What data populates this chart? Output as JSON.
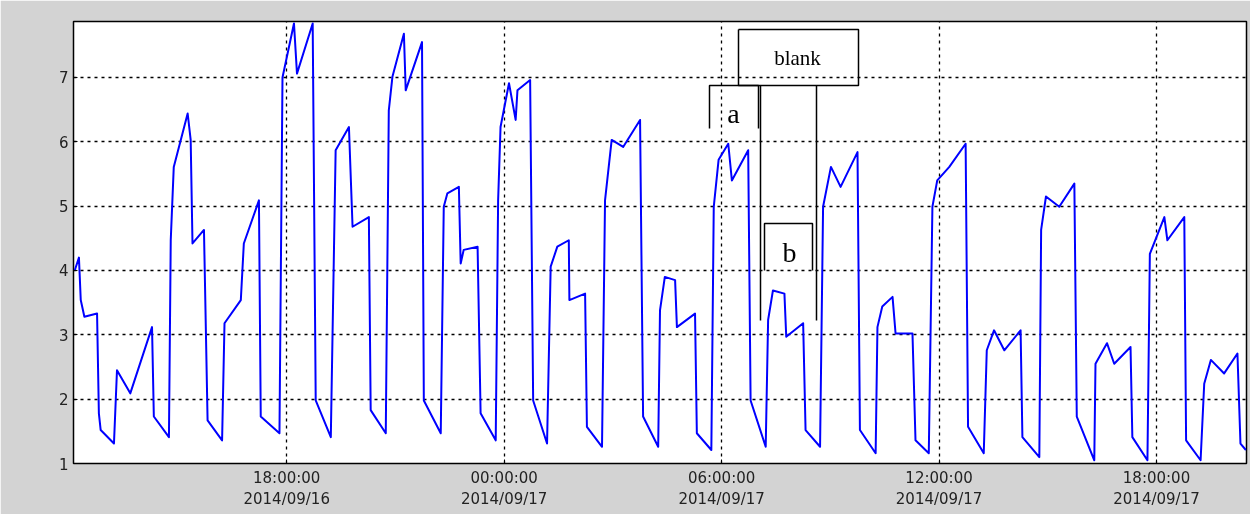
{
  "chart_data": {
    "type": "line",
    "x": [
      "2014-09-16T12:09",
      "2014-09-16T12:16",
      "2014-09-16T12:19",
      "2014-09-16T12:25",
      "2014-09-16T12:46",
      "2014-09-16T12:49",
      "2014-09-16T12:52",
      "2014-09-16T13:14",
      "2014-09-16T13:19",
      "2014-09-16T13:41",
      "2014-09-16T14:17",
      "2014-09-16T14:20",
      "2014-09-16T14:45",
      "2014-09-16T14:48",
      "2014-09-16T14:53",
      "2014-09-16T15:16",
      "2014-09-16T15:21",
      "2014-09-16T15:24",
      "2014-09-16T15:43",
      "2014-09-16T15:49",
      "2014-09-16T16:13",
      "2014-09-16T16:17",
      "2014-09-16T16:44",
      "2014-09-16T16:49",
      "2014-09-16T17:14",
      "2014-09-16T17:17",
      "2014-09-16T17:48",
      "2014-09-16T17:53",
      "2014-09-16T18:12",
      "2014-09-16T18:17",
      "2014-09-16T18:43",
      "2014-09-16T18:48",
      "2014-09-16T19:13",
      "2014-09-16T19:21",
      "2014-09-16T19:43",
      "2014-09-16T19:49",
      "2014-09-16T20:16",
      "2014-09-16T20:19",
      "2014-09-16T20:44",
      "2014-09-16T20:49",
      "2014-09-16T20:55",
      "2014-09-16T21:14",
      "2014-09-16T21:17",
      "2014-09-16T21:44",
      "2014-09-16T21:47",
      "2014-09-16T22:15",
      "2014-09-16T22:20",
      "2014-09-16T22:26",
      "2014-09-16T22:45",
      "2014-09-16T22:48",
      "2014-09-16T22:53",
      "2014-09-16T23:16",
      "2014-09-16T23:21",
      "2014-09-16T23:46",
      "2014-09-16T23:50",
      "2014-09-16T23:54",
      "2014-09-17T00:08",
      "2014-09-17T00:19",
      "2014-09-17T00:22",
      "2014-09-17T00:43",
      "2014-09-17T00:48",
      "2014-09-17T01:11",
      "2014-09-17T01:17",
      "2014-09-17T01:28",
      "2014-09-17T01:47",
      "2014-09-17T01:48",
      "2014-09-17T02:14",
      "2014-09-17T02:17",
      "2014-09-17T02:42",
      "2014-09-17T02:47",
      "2014-09-17T02:58",
      "2014-09-17T03:17",
      "2014-09-17T03:45",
      "2014-09-17T03:50",
      "2014-09-17T04:15",
      "2014-09-17T04:18",
      "2014-09-17T04:26",
      "2014-09-17T04:43",
      "2014-09-17T04:46",
      "2014-09-17T05:16",
      "2014-09-17T05:19",
      "2014-09-17T05:43",
      "2014-09-17T05:47",
      "2014-09-17T05:55",
      "2014-09-17T06:11",
      "2014-09-17T06:17",
      "2014-09-17T06:44",
      "2014-09-17T06:48",
      "2014-09-17T07:13",
      "2014-09-17T07:17",
      "2014-09-17T07:25",
      "2014-09-17T07:44",
      "2014-09-17T07:47",
      "2014-09-17T08:15",
      "2014-09-17T08:19",
      "2014-09-17T08:43",
      "2014-09-17T08:48",
      "2014-09-17T09:01",
      "2014-09-17T09:17",
      "2014-09-17T09:45",
      "2014-09-17T09:49",
      "2014-09-17T10:15",
      "2014-09-17T10:18",
      "2014-09-17T10:26",
      "2014-09-17T10:43",
      "2014-09-17T10:48",
      "2014-09-17T11:16",
      "2014-09-17T11:21",
      "2014-09-17T11:43",
      "2014-09-17T11:49",
      "2014-09-17T11:57",
      "2014-09-17T12:17",
      "2014-09-17T12:44",
      "2014-09-17T12:48",
      "2014-09-17T13:14",
      "2014-09-17T13:19",
      "2014-09-17T13:31",
      "2014-09-17T13:48",
      "2014-09-17T14:15",
      "2014-09-17T14:18",
      "2014-09-17T14:46",
      "2014-09-17T14:49",
      "2014-09-17T14:57",
      "2014-09-17T15:19",
      "2014-09-17T15:44",
      "2014-09-17T15:48",
      "2014-09-17T16:17",
      "2014-09-17T16:19",
      "2014-09-17T16:38",
      "2014-09-17T16:50",
      "2014-09-17T17:17",
      "2014-09-17T17:20",
      "2014-09-17T17:45",
      "2014-09-17T17:49",
      "2014-09-17T18:13",
      "2014-09-17T18:18",
      "2014-09-17T18:46",
      "2014-09-17T18:49",
      "2014-09-17T19:13",
      "2014-09-17T19:19",
      "2014-09-17T19:30",
      "2014-09-17T19:52",
      "2014-09-17T20:14",
      "2014-09-17T20:19",
      "2014-09-17T20:28"
    ],
    "series": [
      {
        "color": "#0000ff",
        "values": [
          4.0,
          4.2,
          3.54,
          3.28,
          3.33,
          1.78,
          1.52,
          1.31,
          2.45,
          2.09,
          3.12,
          1.73,
          1.41,
          4.47,
          5.61,
          6.44,
          6.03,
          4.42,
          4.63,
          1.67,
          1.36,
          3.18,
          3.54,
          4.42,
          5.09,
          1.73,
          1.47,
          7.0,
          7.84,
          7.06,
          7.84,
          1.98,
          1.41,
          5.87,
          6.23,
          4.68,
          4.83,
          1.83,
          1.47,
          6.49,
          7.01,
          7.68,
          6.8,
          7.55,
          1.98,
          1.47,
          4.99,
          5.2,
          5.3,
          4.11,
          4.32,
          4.37,
          1.78,
          1.36,
          5.09,
          6.23,
          6.91,
          6.34,
          6.8,
          6.96,
          1.98,
          1.31,
          4.06,
          4.37,
          4.47,
          3.54,
          3.64,
          1.57,
          1.26,
          5.09,
          6.03,
          5.92,
          6.34,
          1.73,
          1.26,
          3.38,
          3.9,
          3.85,
          3.12,
          3.33,
          1.47,
          1.21,
          4.99,
          5.72,
          5.97,
          5.4,
          5.87,
          1.98,
          1.26,
          3.23,
          3.69,
          3.64,
          2.97,
          3.18,
          1.52,
          1.26,
          4.99,
          5.61,
          5.3,
          5.84,
          1.52,
          1.16,
          3.12,
          3.44,
          3.59,
          3.02,
          3.02,
          1.36,
          1.16,
          4.99,
          5.4,
          5.61,
          5.97,
          1.57,
          1.16,
          2.76,
          3.07,
          2.76,
          3.07,
          1.41,
          1.1,
          4.63,
          5.15,
          4.99,
          5.35,
          1.73,
          1.05,
          2.55,
          2.87,
          2.55,
          2.81,
          1.41,
          1.05,
          4.26,
          4.83,
          4.47,
          4.83,
          1.36,
          1.05,
          2.24,
          2.61,
          2.4,
          2.71,
          1.31,
          1.21
        ]
      }
    ],
    "xlim": [
      "2014-09-16T12:07",
      "2014-09-17T20:29"
    ],
    "xticks": [
      {
        "value": "2014-09-16T18:00",
        "label": "18:00:00\n2014/09/16"
      },
      {
        "value": "2014-09-17T00:00",
        "label": "00:00:00\n2014/09/17"
      },
      {
        "value": "2014-09-17T06:00",
        "label": "06:00:00\n2014/09/17"
      },
      {
        "value": "2014-09-17T12:00",
        "label": "12:00:00\n2014/09/17"
      },
      {
        "value": "2014-09-17T18:00",
        "label": "18:00:00\n2014/09/17"
      }
    ],
    "ylim": [
      1,
      7.87
    ],
    "yticks": [
      1,
      2,
      3,
      4,
      5,
      6,
      7
    ],
    "grid": true,
    "annotations": [
      "a",
      "blank",
      "b"
    ]
  }
}
